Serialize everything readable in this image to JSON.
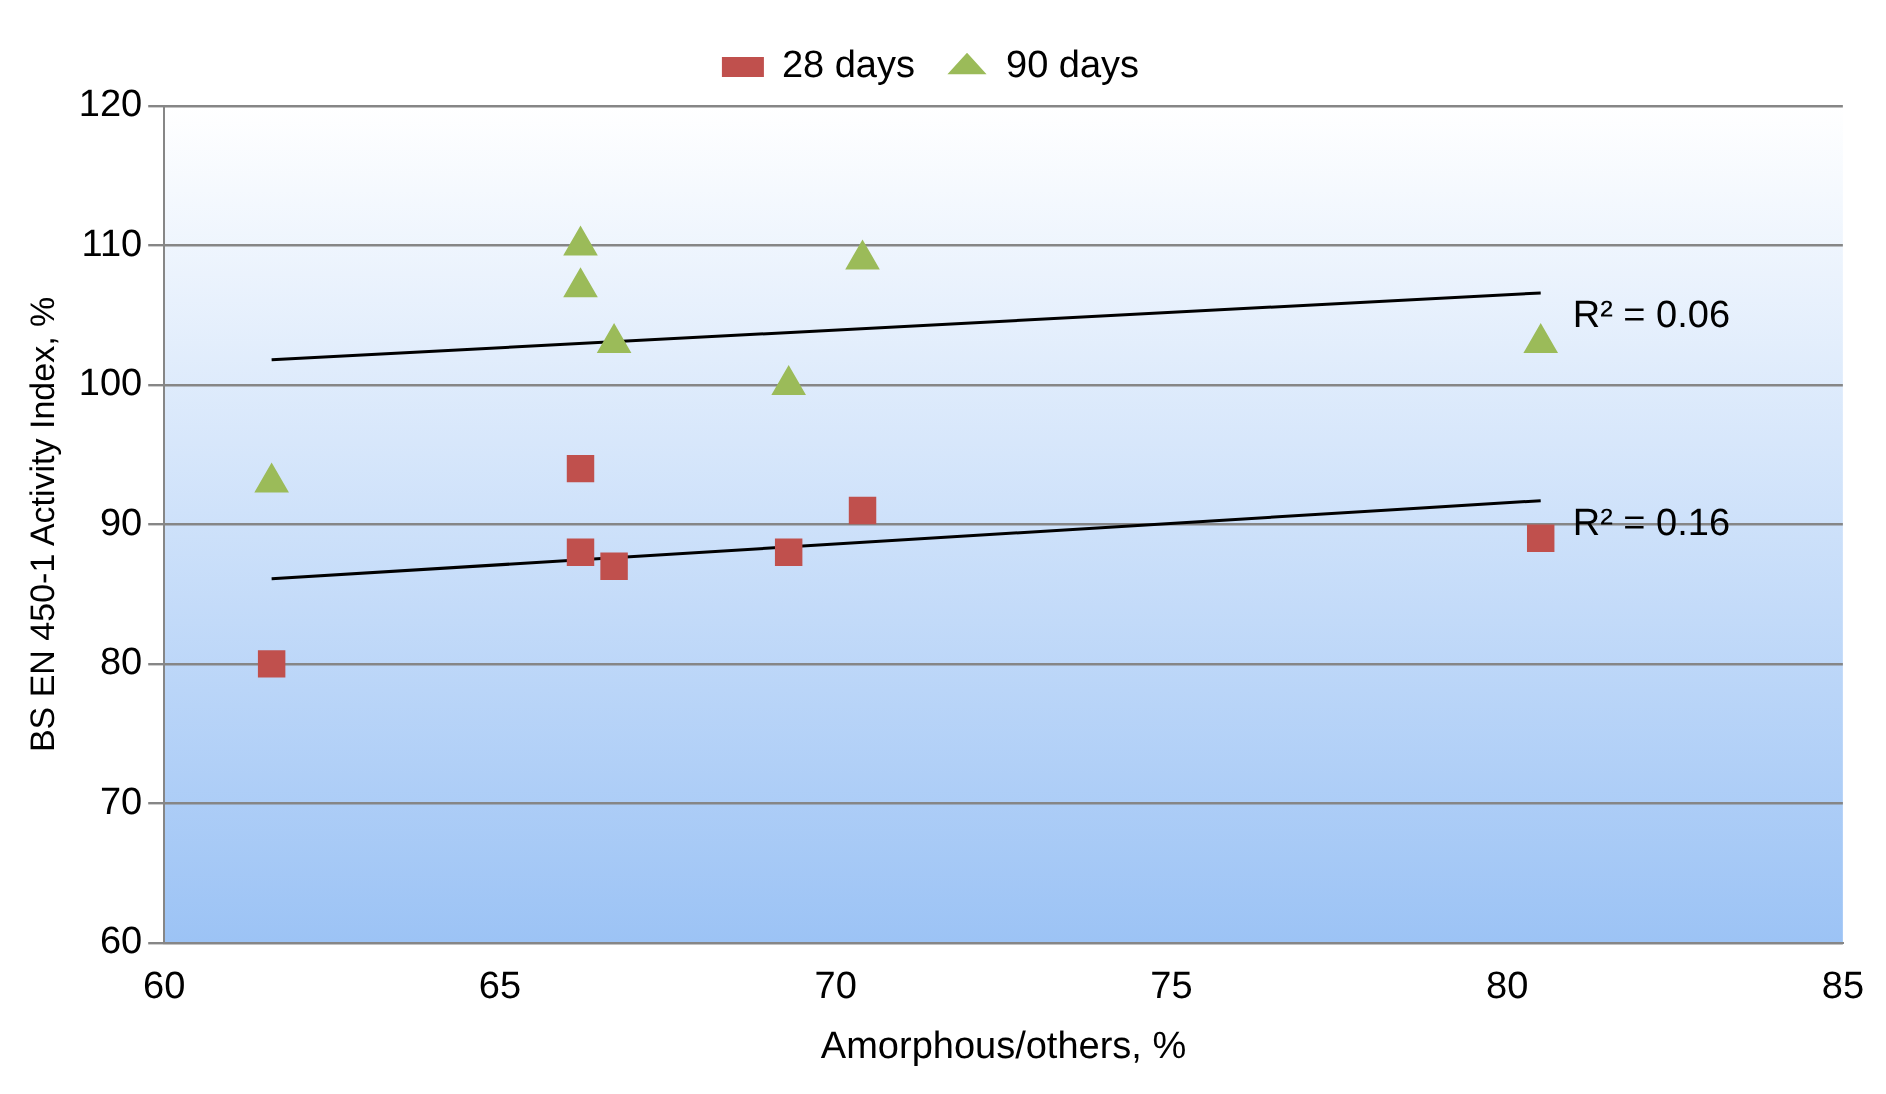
{
  "chart_data": {
    "type": "scatter",
    "xlabel": "Amorphous/others, %",
    "ylabel": "BS EN 450-1 Activity Index, %",
    "xlim": [
      60,
      85
    ],
    "xticks": [
      60,
      65,
      70,
      75,
      80,
      85
    ],
    "ylim": [
      60,
      120
    ],
    "yticks": [
      60,
      70,
      80,
      90,
      100,
      110,
      120
    ],
    "grid": "y",
    "legend": "top",
    "series": [
      {
        "name": "28 days",
        "color": "#c0504d",
        "marker": "square",
        "x": [
          61.6,
          66.2,
          66.2,
          66.7,
          69.3,
          70.4,
          80.5
        ],
        "values": [
          80,
          94,
          88,
          87,
          88,
          91,
          89
        ]
      },
      {
        "name": "90 days",
        "color": "#9bbb59",
        "marker": "triangle",
        "x": [
          61.6,
          66.2,
          66.2,
          66.7,
          69.3,
          70.4,
          80.5
        ],
        "values": [
          93,
          110,
          107,
          103,
          100,
          109,
          103
        ]
      },
      {
        "type": "line",
        "color": "#000000",
        "marker": "none",
        "x": [
          61.6,
          80.5
        ],
        "values": [
          101.8,
          106.6
        ]
      },
      {
        "type": "line",
        "color": "#000000",
        "marker": "none",
        "x": [
          61.6,
          80.5
        ],
        "values": [
          86.1,
          91.7
        ]
      }
    ],
    "annotations": [
      {
        "text": "R² = 0.06",
        "x": 80.5,
        "y": 106.6
      },
      {
        "text": "R² = 0.16",
        "x": 80.5,
        "y": 91.7
      }
    ]
  }
}
